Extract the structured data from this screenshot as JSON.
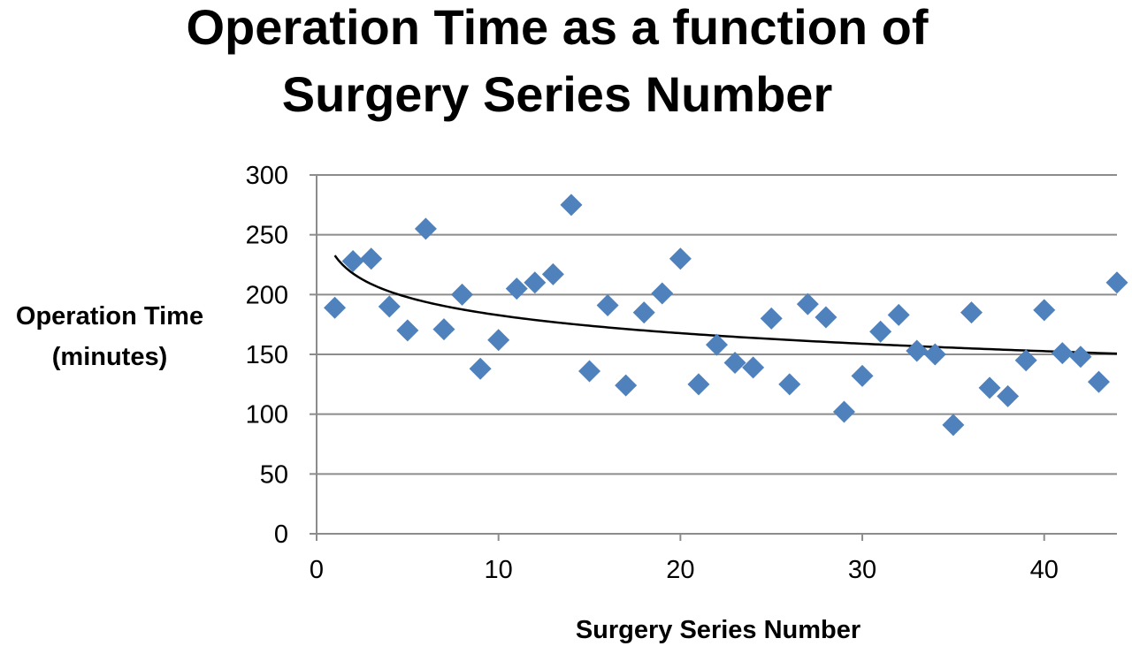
{
  "chart_data": {
    "type": "scatter",
    "title_lines": [
      "Operation Time as a function of",
      "Surgery Series Number"
    ],
    "xlabel": "Surgery Series Number",
    "ylabel_lines": [
      "Operation Time",
      "(minutes)"
    ],
    "xlim": [
      0,
      44
    ],
    "ylim": [
      0,
      300
    ],
    "x_ticks": [
      0,
      10,
      20,
      30,
      40
    ],
    "y_ticks": [
      0,
      50,
      100,
      150,
      200,
      250,
      300
    ],
    "grid": "horizontal",
    "marker": "diamond",
    "marker_color": "#4F81BD",
    "trendline": {
      "type": "logarithmic",
      "color": "#000000",
      "x_range": [
        1,
        44
      ]
    },
    "points": [
      {
        "x": 1,
        "y": 189
      },
      {
        "x": 2,
        "y": 228
      },
      {
        "x": 3,
        "y": 230
      },
      {
        "x": 4,
        "y": 190
      },
      {
        "x": 5,
        "y": 170
      },
      {
        "x": 6,
        "y": 255
      },
      {
        "x": 7,
        "y": 171
      },
      {
        "x": 8,
        "y": 200
      },
      {
        "x": 9,
        "y": 138
      },
      {
        "x": 10,
        "y": 162
      },
      {
        "x": 11,
        "y": 205
      },
      {
        "x": 12,
        "y": 210
      },
      {
        "x": 13,
        "y": 217
      },
      {
        "x": 14,
        "y": 275
      },
      {
        "x": 15,
        "y": 136
      },
      {
        "x": 16,
        "y": 191
      },
      {
        "x": 17,
        "y": 124
      },
      {
        "x": 18,
        "y": 185
      },
      {
        "x": 19,
        "y": 201
      },
      {
        "x": 20,
        "y": 230
      },
      {
        "x": 21,
        "y": 125
      },
      {
        "x": 22,
        "y": 158
      },
      {
        "x": 23,
        "y": 143
      },
      {
        "x": 24,
        "y": 139
      },
      {
        "x": 25,
        "y": 180
      },
      {
        "x": 26,
        "y": 125
      },
      {
        "x": 27,
        "y": 192
      },
      {
        "x": 28,
        "y": 181
      },
      {
        "x": 29,
        "y": 102
      },
      {
        "x": 30,
        "y": 132
      },
      {
        "x": 31,
        "y": 169
      },
      {
        "x": 32,
        "y": 183
      },
      {
        "x": 33,
        "y": 153
      },
      {
        "x": 34,
        "y": 150
      },
      {
        "x": 35,
        "y": 91
      },
      {
        "x": 36,
        "y": 185
      },
      {
        "x": 37,
        "y": 122
      },
      {
        "x": 38,
        "y": 115
      },
      {
        "x": 39,
        "y": 145
      },
      {
        "x": 40,
        "y": 187
      },
      {
        "x": 41,
        "y": 151
      },
      {
        "x": 42,
        "y": 148
      },
      {
        "x": 43,
        "y": 127
      },
      {
        "x": 44,
        "y": 210
      }
    ]
  }
}
